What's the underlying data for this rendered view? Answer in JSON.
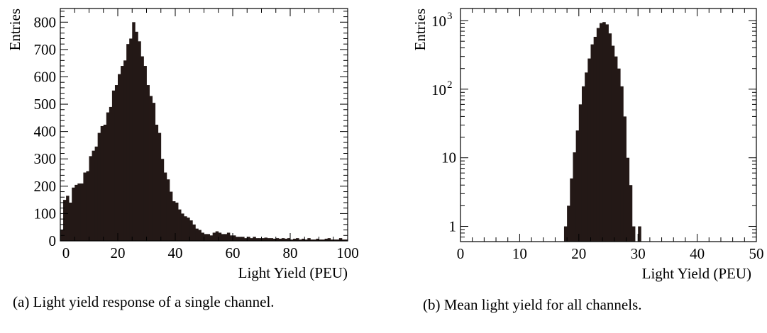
{
  "chart_data": [
    {
      "type": "bar",
      "subplot": "a",
      "xlabel": "Light Yield (PEU)",
      "ylabel": "Entries",
      "xlim": [
        0,
        100
      ],
      "ylim": [
        0,
        850
      ],
      "x_scale": "linear",
      "y_scale": "linear",
      "xticks": [
        0,
        20,
        40,
        60,
        80,
        100
      ],
      "yticks": [
        0,
        100,
        200,
        300,
        400,
        500,
        600,
        700,
        800
      ],
      "bin_width": 1,
      "grid": false,
      "bar_color": "#231816",
      "caption": "(a) Light yield response of a single channel.",
      "bins_start": [
        0,
        1,
        2,
        3,
        4,
        5,
        6,
        7,
        8,
        9,
        10,
        11,
        12,
        13,
        14,
        15,
        16,
        17,
        18,
        19,
        20,
        21,
        22,
        23,
        24,
        25,
        26,
        27,
        28,
        29,
        30,
        31,
        32,
        33,
        34,
        35,
        36,
        37,
        38,
        39,
        40,
        41,
        42,
        43,
        44,
        45,
        46,
        47,
        48,
        49,
        50,
        51,
        52,
        53,
        54,
        55,
        56,
        57,
        58,
        59,
        60,
        61,
        62,
        63,
        64,
        65,
        66,
        67,
        68,
        69,
        70,
        71,
        72,
        73,
        74,
        75,
        76,
        77,
        78,
        79,
        80,
        81,
        82,
        83,
        84,
        85,
        86,
        87,
        88,
        89,
        90,
        91,
        92,
        93,
        94,
        95,
        96,
        97,
        98,
        99
      ],
      "values": [
        40,
        150,
        165,
        140,
        195,
        205,
        210,
        210,
        250,
        255,
        310,
        330,
        345,
        395,
        420,
        425,
        470,
        490,
        550,
        570,
        610,
        640,
        660,
        720,
        740,
        800,
        765,
        730,
        675,
        640,
        570,
        530,
        505,
        425,
        395,
        300,
        250,
        225,
        180,
        145,
        140,
        115,
        100,
        90,
        85,
        75,
        60,
        45,
        40,
        30,
        25,
        25,
        20,
        30,
        35,
        30,
        25,
        25,
        30,
        20,
        20,
        15,
        15,
        15,
        10,
        15,
        10,
        15,
        10,
        10,
        10,
        12,
        10,
        10,
        8,
        10,
        8,
        10,
        8,
        10,
        5,
        8,
        10,
        5,
        8,
        5,
        10,
        5,
        5,
        8,
        5,
        5,
        8,
        10,
        5,
        5,
        5,
        10,
        5,
        5
      ]
    },
    {
      "type": "bar",
      "subplot": "b",
      "xlabel": "Light Yield (PEU)",
      "ylabel": "Entries",
      "xlim": [
        0,
        50
      ],
      "ylim": [
        0.6,
        1500
      ],
      "x_scale": "linear",
      "y_scale": "log",
      "xticks": [
        0,
        10,
        20,
        30,
        40,
        50
      ],
      "yticks": [
        1,
        10,
        100,
        1000
      ],
      "ytick_labels": [
        "1",
        "10",
        "10^2",
        "10^3"
      ],
      "bin_width": 0.5,
      "grid": false,
      "bar_color": "#231816",
      "caption": "(b) Mean light yield for all channels.",
      "bins_start": [
        17.5,
        18.0,
        18.5,
        19.0,
        19.5,
        20.0,
        20.5,
        21.0,
        21.5,
        22.0,
        22.5,
        23.0,
        23.5,
        24.0,
        24.5,
        25.0,
        25.5,
        26.0,
        26.5,
        27.0,
        27.5,
        28.0,
        28.5,
        29.0,
        29.5,
        30.0
      ],
      "values": [
        1,
        2,
        5,
        12,
        25,
        60,
        110,
        175,
        280,
        450,
        580,
        780,
        920,
        950,
        880,
        650,
        430,
        300,
        200,
        110,
        40,
        10,
        4,
        1,
        0,
        1
      ]
    }
  ],
  "captions": {
    "a": "(a) Light yield response of a single channel.",
    "b": "(b) Mean light yield for all channels."
  }
}
